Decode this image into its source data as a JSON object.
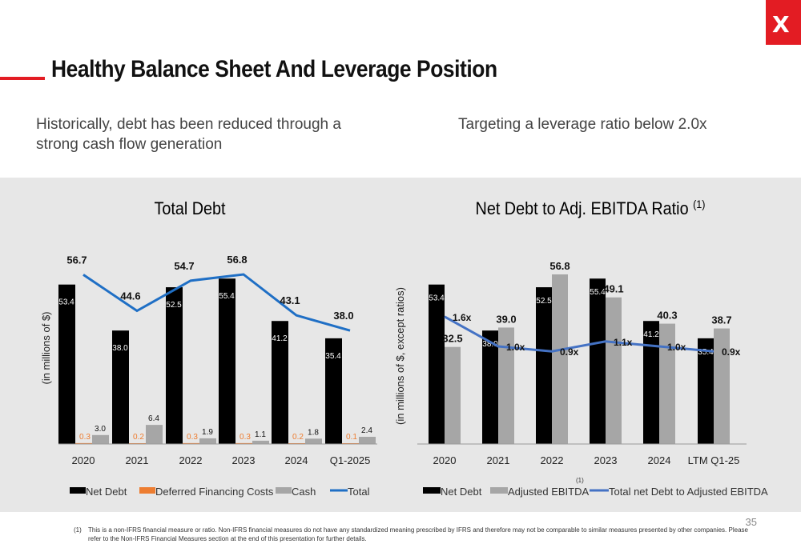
{
  "logo": {
    "text": "X",
    "color": "#e31c23"
  },
  "page": {
    "title": "Healthy Balance Sheet And Leverage Position",
    "subtitle_left": "Historically, debt has been reduced through a strong cash flow generation",
    "subtitle_right": "Targeting a leverage ratio below 2.0x",
    "page_number": "35",
    "footnote_marker": "(1)",
    "footnote_text": "This is a non-IFRS financial measure or ratio. Non-IFRS financial measures do not have any standardized meaning prescribed by IFRS and therefore may not be comparable to similar measures presented by other companies. Please refer to the Non-IFRS Financial Measures section at the end of this presentation for further details."
  },
  "chart_data": [
    {
      "type": "bar",
      "title": "Total Debt",
      "ylabel": "(in millions of $)",
      "categories": [
        "2020",
        "2021",
        "2022",
        "2023",
        "2024",
        "Q1-2025"
      ],
      "series": [
        {
          "name": "Net Debt",
          "kind": "bar",
          "color": "#000000",
          "values": [
            53.4,
            38.0,
            52.5,
            55.4,
            41.2,
            35.4
          ],
          "labels": [
            "53.4",
            "38.0",
            "52.5",
            "55.4",
            "41.2",
            "35.4"
          ]
        },
        {
          "name": "Deferred Financing Costs",
          "kind": "bar",
          "color": "#ed7d31",
          "values": [
            0.3,
            0.2,
            0.3,
            0.3,
            0.2,
            0.1
          ],
          "labels": [
            "0.3",
            "0.2",
            "0.3",
            "0.3",
            "0.2",
            "0.1"
          ]
        },
        {
          "name": "Cash",
          "kind": "bar",
          "color": "#a6a6a6",
          "values": [
            3.0,
            6.4,
            1.9,
            1.1,
            1.8,
            2.4
          ],
          "labels": [
            "3.0",
            "6.4",
            "1.9",
            "1.1",
            "1.8",
            "2.4"
          ]
        },
        {
          "name": "Total",
          "kind": "line",
          "color": "#1f6fc5",
          "values": [
            56.7,
            44.6,
            54.7,
            56.8,
            43.1,
            38.0
          ],
          "labels": [
            "56.7",
            "44.6",
            "54.7",
            "56.8",
            "43.1",
            "38.0"
          ]
        }
      ],
      "ylim": [
        0,
        60
      ],
      "grid": false,
      "legend": "bottom"
    },
    {
      "type": "bar",
      "title": "Net Debt to Adj. EBITDA Ratio",
      "title_sup": "(1)",
      "ylabel": "(in millions of $, except ratios)",
      "categories": [
        "2020",
        "2021",
        "2022",
        "2023",
        "2024",
        "LTM Q1-25"
      ],
      "series": [
        {
          "name": "Net Debt",
          "kind": "bar",
          "color": "#000000",
          "values": [
            53.4,
            38.0,
            52.5,
            55.4,
            41.2,
            35.4
          ],
          "labels": [
            "53.4",
            "38.0",
            "52.5",
            "55.4",
            "41.2",
            "35.4"
          ]
        },
        {
          "name": "Adjusted EBITDA",
          "name_sup": "(1)",
          "kind": "bar",
          "color": "#a6a6a6",
          "values": [
            32.5,
            39.0,
            56.8,
            49.1,
            40.3,
            38.7
          ],
          "labels": [
            "32.5",
            "39.0",
            "56.8",
            "49.1",
            "40.3",
            "38.7"
          ]
        },
        {
          "name": "Total net Debt to Adjusted EBITDA",
          "kind": "line",
          "color": "#4472c4",
          "values": [
            1.6,
            1.0,
            0.9,
            1.1,
            1.0,
            0.9
          ],
          "labels": [
            "1.6x",
            "1.0x",
            "0.9x",
            "1.1x",
            "1.0x",
            "0.9x"
          ]
        }
      ],
      "ylim": [
        0,
        60
      ],
      "y2lim": [
        0,
        3.5
      ],
      "grid": false,
      "legend": "bottom"
    }
  ]
}
